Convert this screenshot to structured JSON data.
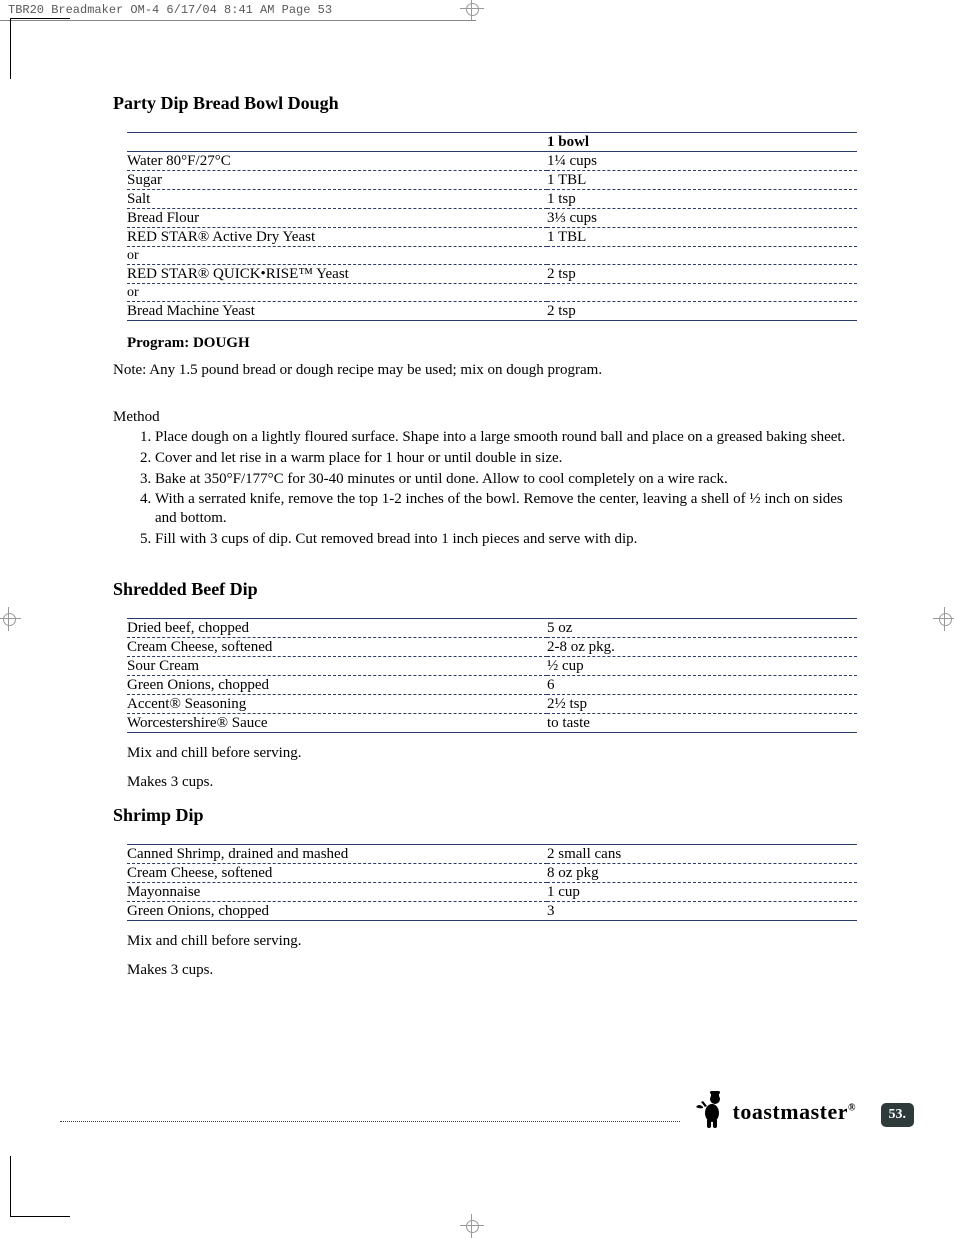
{
  "header_strip": "TBR20 Breadmaker OM-4  6/17/04  8:41 AM  Page 53",
  "recipe1": {
    "title": "Party Dip Bread Bowl Dough",
    "header_amount": "1 bowl",
    "rows": [
      {
        "name": "Water 80°F/27°C",
        "amount": "1¼ cups"
      },
      {
        "name": "Sugar",
        "amount": "1 TBL"
      },
      {
        "name": "Salt",
        "amount": "1 tsp"
      },
      {
        "name": "Bread Flour",
        "amount": "3⅓ cups"
      },
      {
        "name": "RED STAR® Active Dry Yeast",
        "amount": "1 TBL"
      },
      {
        "name": "or",
        "amount": ""
      },
      {
        "name": "RED STAR® QUICK•RISE™ Yeast",
        "amount": "2 tsp"
      },
      {
        "name": "or",
        "amount": ""
      },
      {
        "name": "Bread Machine Yeast",
        "amount": "2 tsp"
      }
    ],
    "program": "Program: DOUGH",
    "note": "Note: Any 1.5 pound bread or dough recipe may be used; mix on dough program.",
    "method_label": "Method",
    "steps": [
      "Place dough on a lightly floured surface. Shape into a large smooth round ball and place on a greased baking sheet.",
      "Cover and let rise in a warm place for 1 hour or until double in size.",
      "Bake at 350°F/177°C for 30-40 minutes or until done. Allow to cool completely on a wire rack.",
      "With a serrated knife, remove the top 1-2 inches of the bowl. Remove the center, leaving a shell of ½ inch on sides and bottom.",
      "Fill with 3 cups of dip. Cut removed bread into 1 inch pieces and serve with dip."
    ]
  },
  "recipe2": {
    "title": "Shredded Beef Dip",
    "rows": [
      {
        "name": "Dried beef, chopped",
        "amount": "5 oz"
      },
      {
        "name": "Cream Cheese, softened",
        "amount": "2-8 oz pkg."
      },
      {
        "name": "Sour Cream",
        "amount": "½ cup"
      },
      {
        "name": "Green Onions, chopped",
        "amount": "6"
      },
      {
        "name": "Accent® Seasoning",
        "amount": "2½ tsp"
      },
      {
        "name": "Worcestershire® Sauce",
        "amount": "to taste"
      }
    ],
    "instr1": "Mix and chill before serving.",
    "instr2": "Makes 3 cups."
  },
  "recipe3": {
    "title": "Shrimp Dip",
    "rows": [
      {
        "name": "Canned Shrimp, drained and mashed",
        "amount": "2 small cans"
      },
      {
        "name": "Cream Cheese, softened",
        "amount": "8 oz pkg"
      },
      {
        "name": "Mayonnaise",
        "amount": "1 cup"
      },
      {
        "name": "Green Onions, chopped",
        "amount": "3"
      }
    ],
    "instr1": "Mix and chill before serving.",
    "instr2": "Makes 3 cups."
  },
  "footer": {
    "brand": "toastmaster",
    "page": "53."
  }
}
